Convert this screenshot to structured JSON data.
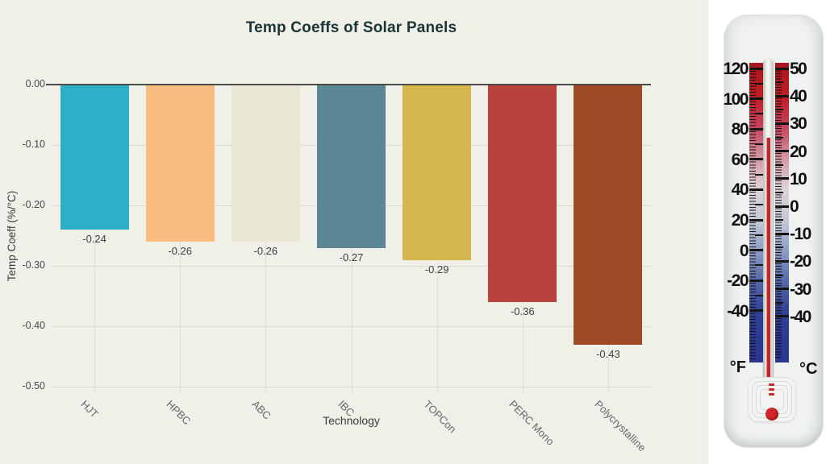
{
  "title": "Temp Coeffs of Solar Panels",
  "chart_data": {
    "type": "bar",
    "title": "Temp Coeffs of Solar Panels",
    "xlabel": "Technology",
    "ylabel": "Temp Coeff (%/°C)",
    "categories": [
      "HJT",
      "HPBC",
      "ABC",
      "IBC",
      "TOPCon",
      "PERC Mono",
      "Polycrystalline"
    ],
    "values": [
      -0.24,
      -0.26,
      -0.26,
      -0.27,
      -0.29,
      -0.36,
      -0.43
    ],
    "data_labels": [
      "-0.24",
      "-0.26",
      "-0.26",
      "-0.27",
      "-0.29",
      "-0.36",
      "-0.43"
    ],
    "bar_colors": [
      "#2cb0c7",
      "#fabd80",
      "#e9e7d6",
      "#5d8795",
      "#d3b74d",
      "#b9413d",
      "#9e4a27"
    ],
    "ylim": [
      -0.5,
      0
    ],
    "yticks": [
      0,
      -0.1,
      -0.2,
      -0.3,
      -0.4,
      -0.5
    ],
    "ytick_labels": [
      "0.00",
      "-0.10",
      "-0.20",
      "-0.30",
      "-0.40",
      "-0.50"
    ],
    "grid": true,
    "legend": false,
    "background_color": "#f0efe8"
  },
  "thermometer": {
    "fahrenheit_scale": {
      "unit": "°F",
      "values": [
        120,
        100,
        80,
        60,
        40,
        20,
        0,
        -20,
        -40
      ],
      "labels": [
        "120",
        "100",
        "80",
        "60",
        "40",
        "20",
        "0",
        "-20",
        "-40"
      ]
    },
    "celsius_scale": {
      "unit": "°C",
      "values": [
        50,
        40,
        30,
        20,
        10,
        0,
        -10,
        -20,
        -30,
        -40
      ],
      "labels": [
        "50",
        "40",
        "30",
        "20",
        "10",
        "0",
        "-10",
        "-20",
        "-30",
        "-40"
      ]
    },
    "mercury_reading_f": 74,
    "colors": {
      "mercury": "#c5262c",
      "hot_end": "#a8161d",
      "cold_end": "#2a3690"
    }
  }
}
